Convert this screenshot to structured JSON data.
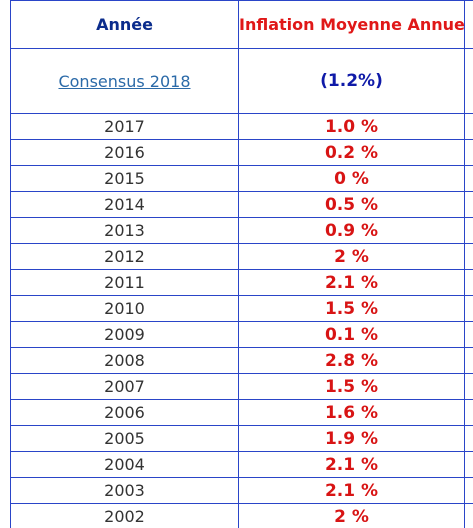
{
  "table": {
    "headers": {
      "year": "Année",
      "inflation": "Inflation Moyenne Annuelle"
    },
    "consensus": {
      "label": "Consensus 2018",
      "value": "(1.2%)"
    },
    "rows": [
      {
        "year": "2017",
        "rate": "1.0 %"
      },
      {
        "year": "2016",
        "rate": "0.2 %"
      },
      {
        "year": "2015",
        "rate": "0 %"
      },
      {
        "year": "2014",
        "rate": "0.5 %"
      },
      {
        "year": "2013",
        "rate": "0.9 %"
      },
      {
        "year": "2012",
        "rate": "2 %"
      },
      {
        "year": "2011",
        "rate": "2.1 %"
      },
      {
        "year": "2010",
        "rate": "1.5 %"
      },
      {
        "year": "2009",
        "rate": "0.1 %"
      },
      {
        "year": "2008",
        "rate": "2.8 %"
      },
      {
        "year": "2007",
        "rate": "1.5 %"
      },
      {
        "year": "2006",
        "rate": "1.6 %"
      },
      {
        "year": "2005",
        "rate": "1.9 %"
      },
      {
        "year": "2004",
        "rate": "2.1 %"
      },
      {
        "year": "2003",
        "rate": "2.1 %"
      },
      {
        "year": "2002",
        "rate": "2 %"
      }
    ]
  },
  "colors": {
    "border": "#2a45c8",
    "year_header": "#0b2c8c",
    "inflation_header": "#e01818",
    "link": "#2b6aa8",
    "consensus_value": "#0f1aa8",
    "rate": "#d81414"
  }
}
